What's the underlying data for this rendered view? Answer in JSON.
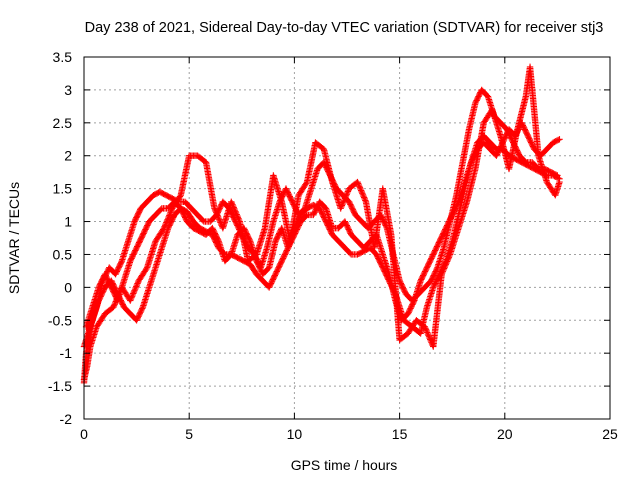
{
  "chart_data": {
    "type": "scatter",
    "title": "Day 238 of 2021, Sidereal Day-to-day VTEC variation (SDTVAR) for receiver stj3",
    "xlabel": "GPS time / hours",
    "ylabel": "SDTVAR / TECUs",
    "xlim": [
      0,
      25
    ],
    "ylim": [
      -2,
      3.5
    ],
    "xticks": [
      "0",
      "5",
      "10",
      "15",
      "20",
      "25"
    ],
    "yticks": [
      "-2",
      "-1.5",
      "-1",
      "-0.5",
      "0",
      "0.5",
      "1",
      "1.5",
      "2",
      "2.5",
      "3",
      "3.5"
    ],
    "grid": true,
    "marker": "+",
    "color": "#ff0000",
    "series": [
      {
        "x": [
          0.0,
          0.1,
          0.2,
          0.3,
          0.5,
          0.7,
          1.0,
          1.3,
          1.6,
          1.9,
          2.2,
          2.5,
          2.8,
          3.1,
          3.4,
          3.7,
          4.0,
          4.3,
          4.6,
          4.9,
          5.2,
          5.5,
          5.8,
          6.1,
          6.4,
          6.7,
          7.0,
          7.3,
          7.6,
          7.9,
          8.2,
          8.5,
          8.8,
          9.1,
          9.4,
          9.7,
          10.0,
          10.3,
          10.6,
          10.9,
          11.2,
          11.5,
          11.8,
          12.1,
          12.4,
          12.7,
          13.0,
          13.3,
          13.6,
          13.9,
          14.2,
          14.5,
          14.8,
          15.0,
          15.2,
          15.4,
          15.6,
          15.8,
          16.0,
          16.3,
          16.6,
          16.9,
          17.2,
          17.5,
          17.8,
          18.1,
          18.4,
          18.7,
          19.0,
          19.3,
          19.6,
          19.9,
          20.2,
          20.5,
          20.8,
          21.1,
          21.4,
          21.7,
          22.0,
          22.3,
          22.6
        ],
        "y": [
          -1.45,
          -1.0,
          -0.8,
          -0.6,
          -0.4,
          -0.2,
          0.0,
          0.1,
          -0.1,
          -0.3,
          -0.4,
          -0.5,
          -0.3,
          0.0,
          0.3,
          0.6,
          0.9,
          1.1,
          1.2,
          1.15,
          1.0,
          0.9,
          0.85,
          0.8,
          0.6,
          0.5,
          0.5,
          0.45,
          0.4,
          0.35,
          0.2,
          0.1,
          0.0,
          0.2,
          0.4,
          0.6,
          0.9,
          1.1,
          1.2,
          1.25,
          1.2,
          1.0,
          0.8,
          0.7,
          0.6,
          0.5,
          0.5,
          0.55,
          0.6,
          0.5,
          0.3,
          0.1,
          -0.1,
          -0.3,
          -0.5,
          -0.55,
          -0.6,
          -0.65,
          -0.7,
          -0.3,
          0.0,
          0.2,
          0.4,
          0.7,
          1.1,
          1.5,
          1.9,
          2.2,
          2.3,
          2.2,
          2.1,
          2.1,
          2.0,
          1.95,
          1.9,
          1.85,
          1.8,
          1.75,
          1.7,
          1.7,
          1.65
        ]
      },
      {
        "x": [
          0.0,
          0.2,
          0.4,
          0.6,
          0.9,
          1.2,
          1.5,
          1.8,
          2.1,
          2.4,
          2.7,
          3.0,
          3.3,
          3.6,
          3.9,
          4.2,
          4.5,
          4.8,
          5.1,
          5.4,
          5.7,
          6.0,
          6.3,
          6.6,
          6.9,
          7.2,
          7.5,
          7.8,
          8.1,
          8.4,
          8.7,
          9.0,
          9.3,
          9.6,
          9.9,
          10.2,
          10.5,
          10.8,
          11.1,
          11.4,
          11.7,
          12.0,
          12.3,
          12.6,
          12.9,
          13.2,
          13.5,
          13.8,
          14.1,
          14.4,
          14.7,
          15.0,
          15.3,
          15.6,
          15.9,
          16.2,
          16.5,
          16.8,
          17.1,
          17.4,
          17.7,
          18.0,
          18.3,
          18.6,
          18.9,
          19.2,
          19.5,
          19.8,
          20.1,
          20.4,
          20.7,
          21.0,
          21.3,
          21.6,
          21.9,
          22.2,
          22.5
        ],
        "y": [
          -0.9,
          -0.7,
          -0.5,
          -0.3,
          0.1,
          0.3,
          0.2,
          0.4,
          0.7,
          1.0,
          1.2,
          1.3,
          1.4,
          1.45,
          1.4,
          1.35,
          1.3,
          1.3,
          1.2,
          1.1,
          1.0,
          1.0,
          1.1,
          1.3,
          1.2,
          1.0,
          0.8,
          0.6,
          0.5,
          0.3,
          0.6,
          1.0,
          1.3,
          1.5,
          1.3,
          1.1,
          1.2,
          1.5,
          1.8,
          1.9,
          1.7,
          1.5,
          1.4,
          1.3,
          1.1,
          1.0,
          0.9,
          1.0,
          1.1,
          0.9,
          0.5,
          0.1,
          -0.1,
          -0.2,
          -0.1,
          0.0,
          0.1,
          0.3,
          0.6,
          1.0,
          1.4,
          1.9,
          2.4,
          2.8,
          3.0,
          2.9,
          2.6,
          2.5,
          2.4,
          2.2,
          2.0,
          1.9,
          1.9,
          1.8,
          1.8,
          1.75,
          1.7
        ]
      },
      {
        "x": [
          0.1,
          0.4,
          0.7,
          1.0,
          1.3,
          1.6,
          1.9,
          2.2,
          2.5,
          2.8,
          3.1,
          3.4,
          3.7,
          4.0,
          4.3,
          4.6,
          4.9,
          5.2,
          5.5,
          5.8,
          6.1,
          6.4,
          6.7,
          7.0,
          7.3,
          7.6,
          7.9,
          8.2,
          8.5,
          8.8,
          9.1,
          9.4,
          9.7,
          10.0,
          10.3,
          10.6,
          10.9,
          11.2,
          11.5,
          11.8,
          12.1,
          12.4,
          12.7,
          13.0,
          13.3,
          13.6,
          13.9,
          14.2,
          14.5,
          14.8,
          15.1,
          15.4,
          15.7,
          16.0,
          16.3,
          16.6,
          16.9,
          17.2,
          17.5,
          17.8,
          18.1,
          18.4,
          18.7,
          19.0,
          19.3,
          19.6,
          19.9,
          20.2,
          20.5,
          20.8,
          21.1,
          21.4,
          21.7,
          22.0,
          22.3,
          22.6
        ],
        "y": [
          -0.6,
          -0.3,
          0.0,
          0.2,
          0.0,
          -0.2,
          0.1,
          0.4,
          0.6,
          0.8,
          1.0,
          1.1,
          1.2,
          1.2,
          1.3,
          1.2,
          1.0,
          0.9,
          0.85,
          0.8,
          0.9,
          0.7,
          0.4,
          0.5,
          0.8,
          0.9,
          0.7,
          0.4,
          0.2,
          0.3,
          0.7,
          0.9,
          0.6,
          0.8,
          1.0,
          1.1,
          1.1,
          1.3,
          1.2,
          0.9,
          0.9,
          1.0,
          0.8,
          0.7,
          0.6,
          0.7,
          0.8,
          0.5,
          0.2,
          -0.2,
          -0.5,
          -0.4,
          -0.2,
          0.1,
          0.3,
          0.5,
          0.7,
          0.9,
          1.1,
          1.3,
          1.6,
          1.9,
          2.1,
          2.2,
          2.1,
          2.0,
          2.2,
          2.4,
          2.3,
          2.5,
          2.3,
          2.1,
          2.0,
          2.1,
          2.2,
          2.25
        ]
      },
      {
        "x": [
          0.0,
          0.15,
          0.3,
          0.6,
          1.0,
          1.4,
          1.8,
          2.2,
          2.6,
          3.0,
          3.4,
          3.8,
          4.2,
          4.6,
          5.0,
          5.4,
          5.8,
          6.2,
          6.6,
          7.0,
          7.4,
          7.8,
          8.2,
          8.6,
          9.0,
          9.4,
          9.8,
          10.2,
          10.6,
          11.0,
          11.4,
          11.8,
          12.2,
          12.6,
          13.0,
          13.4,
          13.8,
          14.2,
          14.6,
          15.0,
          15.4,
          15.8,
          16.2,
          16.6,
          17.0,
          17.4,
          17.8,
          18.2,
          18.6,
          19.0,
          19.4,
          19.8,
          20.2,
          20.6,
          21.0,
          21.2,
          21.6,
          22.0,
          22.4,
          22.6
        ],
        "y": [
          -1.4,
          -1.2,
          -0.9,
          -0.6,
          -0.4,
          -0.3,
          0.0,
          -0.2,
          0.1,
          0.3,
          0.7,
          0.9,
          1.2,
          1.4,
          2.0,
          2.0,
          1.9,
          1.2,
          0.9,
          1.3,
          1.0,
          0.4,
          0.5,
          0.9,
          1.7,
          1.3,
          0.7,
          1.4,
          1.6,
          2.2,
          2.1,
          1.6,
          1.2,
          1.5,
          1.6,
          1.3,
          0.6,
          1.5,
          0.8,
          -0.8,
          -0.7,
          -0.5,
          -0.6,
          -0.9,
          0.2,
          0.5,
          0.9,
          1.3,
          1.8,
          2.5,
          2.7,
          2.3,
          1.8,
          2.4,
          2.9,
          3.35,
          2.0,
          1.6,
          1.4,
          1.6
        ]
      }
    ]
  }
}
